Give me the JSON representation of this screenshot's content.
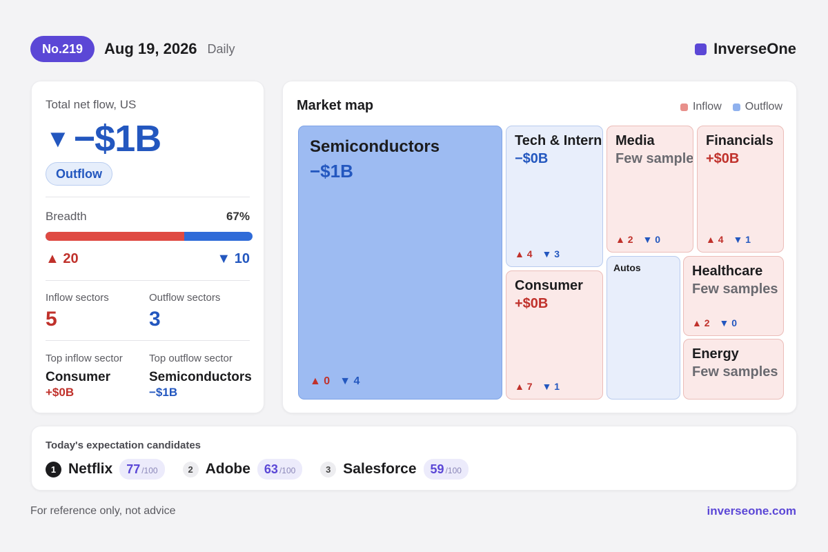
{
  "header": {
    "issue": "No.219",
    "date": "Aug 19, 2026",
    "frequency": "Daily",
    "brand": "InverseOne",
    "brand_color": "#5b47d6"
  },
  "summary": {
    "net_label": "Total net flow, US",
    "net_arrow": "▼",
    "net_value": "−$1B",
    "direction": "Outflow",
    "breadth_label": "Breadth",
    "breadth_pct": "67%",
    "breadth_fraction": 0.67,
    "up_arrow": "▲",
    "down_arrow": "▼",
    "up_count": "20",
    "down_count": "10",
    "inflow_sectors_label": "Inflow sectors",
    "inflow_sectors": "5",
    "outflow_sectors_label": "Outflow sectors",
    "outflow_sectors": "3",
    "top_inflow_label": "Top inflow sector",
    "top_inflow_name": "Consumer",
    "top_inflow_value": "+$0B",
    "top_outflow_label": "Top outflow sector",
    "top_outflow_name": "Semiconductors",
    "top_outflow_value": "−$1B"
  },
  "map": {
    "title": "Market map",
    "legend_inflow": "Inflow",
    "legend_outflow": "Outflow",
    "inflow_color": "#e8908b",
    "outflow_color": "#8fb1ee",
    "tiles": {
      "semiconductors": {
        "name": "Semiconductors",
        "value": "−$1B",
        "up": "▲ 0",
        "down": "▼ 4"
      },
      "tech": {
        "name": "Tech & Internet",
        "value": "−$0B",
        "up": "▲ 4",
        "down": "▼ 3"
      },
      "consumer": {
        "name": "Consumer",
        "value": "+$0B",
        "up": "▲ 7",
        "down": "▼ 1"
      },
      "media": {
        "name": "Media",
        "note": "Few samples",
        "up": "▲ 2",
        "down": "▼ 0"
      },
      "financials": {
        "name": "Financials",
        "value": "+$0B",
        "up": "▲ 4",
        "down": "▼ 1"
      },
      "autos": {
        "name": "Autos"
      },
      "healthcare": {
        "name": "Healthcare",
        "note": "Few samples",
        "up": "▲ 2",
        "down": "▼ 0"
      },
      "energy": {
        "name": "Energy",
        "note": "Few samples"
      }
    }
  },
  "candidates": {
    "title": "Today's expectation candidates",
    "items": [
      {
        "rank": "1",
        "name": "Netflix",
        "score": "77",
        "max": "/100"
      },
      {
        "rank": "2",
        "name": "Adobe",
        "score": "63",
        "max": "/100"
      },
      {
        "rank": "3",
        "name": "Salesforce",
        "score": "59",
        "max": "/100"
      }
    ]
  },
  "footer": {
    "disclaimer": "For reference only, not advice",
    "site": "inverseone.com"
  }
}
